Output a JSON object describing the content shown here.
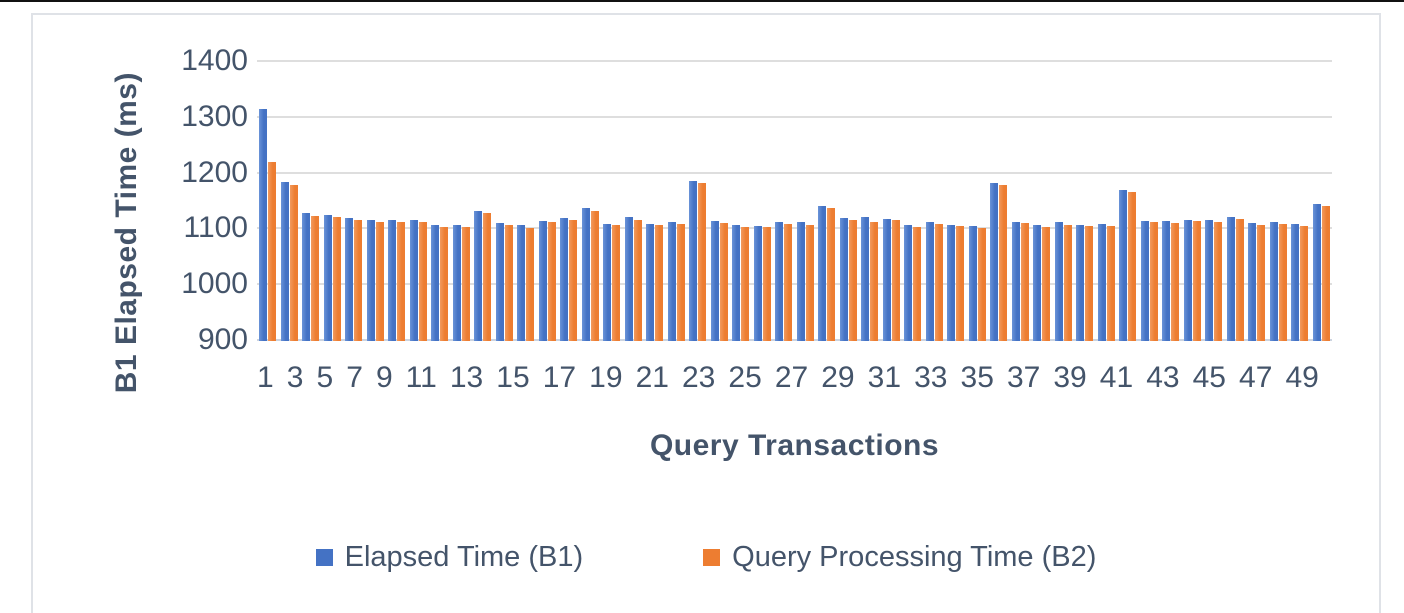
{
  "page": {
    "background": "#ffffff",
    "top_rule_color": "#111111",
    "frame_border_color": "#dfe2e7"
  },
  "colors": {
    "text": "#44546A",
    "gridline": "#DEDEDE",
    "axis_line": "#CCD4E0",
    "series_blue": "#4472C4",
    "series_orange": "#ED7D31"
  },
  "chart_data": {
    "type": "bar",
    "title": "",
    "xlabel": "Query Transactions",
    "ylabel": "B1 Elapsed Time (ms)",
    "ylim": [
      900,
      1400
    ],
    "yticks": [
      900,
      1000,
      1100,
      1200,
      1300,
      1400
    ],
    "grid": true,
    "legend_position": "bottom",
    "x_label_interval": 2,
    "categories": [
      1,
      2,
      3,
      4,
      5,
      6,
      7,
      8,
      9,
      10,
      11,
      12,
      13,
      14,
      15,
      16,
      17,
      18,
      19,
      20,
      21,
      22,
      23,
      24,
      25,
      26,
      27,
      28,
      29,
      30,
      31,
      32,
      33,
      34,
      35,
      36,
      37,
      38,
      39,
      40,
      41,
      42,
      43,
      44,
      45,
      46,
      47,
      48,
      49,
      50
    ],
    "series": [
      {
        "name": "Elapsed Time (B1)",
        "color": "#4472C4",
        "values": [
          1313,
          1183,
          1127,
          1125,
          1119,
          1115,
          1115,
          1116,
          1107,
          1107,
          1131,
          1110,
          1106,
          1114,
          1119,
          1136,
          1109,
          1120,
          1108,
          1112,
          1185,
          1113,
          1106,
          1104,
          1112,
          1111,
          1141,
          1118,
          1120,
          1117,
          1106,
          1112,
          1107,
          1105,
          1182,
          1112,
          1106,
          1111,
          1107,
          1108,
          1169,
          1113,
          1113,
          1116,
          1116,
          1120,
          1110,
          1112,
          1108,
          1144
        ]
      },
      {
        "name": "Query Processing Time (B2)",
        "color": "#ED7D31",
        "values": [
          1218,
          1177,
          1123,
          1121,
          1116,
          1112,
          1112,
          1111,
          1103,
          1102,
          1128,
          1107,
          1101,
          1111,
          1116,
          1132,
          1106,
          1116,
          1106,
          1109,
          1182,
          1110,
          1103,
          1102,
          1108,
          1107,
          1137,
          1115,
          1111,
          1115,
          1103,
          1108,
          1104,
          1101,
          1177,
          1110,
          1103,
          1107,
          1105,
          1105,
          1166,
          1111,
          1110,
          1113,
          1112,
          1117,
          1107,
          1108,
          1105,
          1140
        ]
      }
    ]
  }
}
